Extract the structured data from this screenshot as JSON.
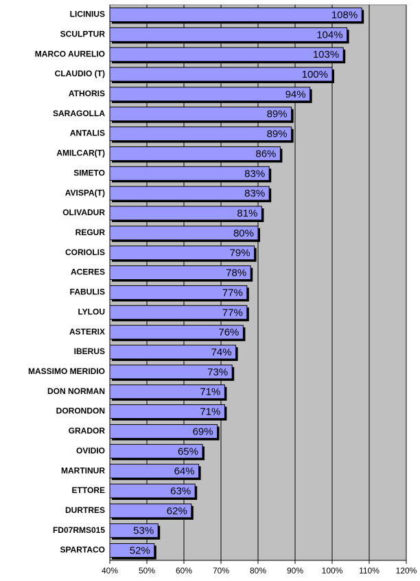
{
  "chart_data": {
    "type": "bar",
    "orientation": "horizontal",
    "categories": [
      "LICINIUS",
      "SCULPTUR",
      "MARCO AURELIO",
      "CLAUDIO (T)",
      "ATHORIS",
      "SARAGOLLA",
      "ANTALIS",
      "AMILCAR(T)",
      "SIMETO",
      "AVISPA(T)",
      "OLIVADUR",
      "REGUR",
      "CORIOLIS",
      "ACERES",
      "FABULIS",
      "LYLOU",
      "ASTERIX",
      "IBERUS",
      "MASSIMO MERIDIO",
      "DON NORMAN",
      "DORONDON",
      "GRADOR",
      "OVIDIO",
      "MARTINUR",
      "ETTORE",
      "DURTRES",
      "FD07RMS015",
      "SPARTACO"
    ],
    "values": [
      108,
      104,
      103,
      100,
      94,
      89,
      89,
      86,
      83,
      83,
      81,
      80,
      79,
      78,
      77,
      77,
      76,
      74,
      73,
      71,
      71,
      69,
      65,
      64,
      63,
      62,
      53,
      52
    ],
    "value_labels": [
      "108%",
      "104%",
      "103%",
      "100%",
      "94%",
      "89%",
      "89%",
      "86%",
      "83%",
      "83%",
      "81%",
      "80%",
      "79%",
      "78%",
      "77%",
      "77%",
      "76%",
      "74%",
      "73%",
      "71%",
      "71%",
      "69%",
      "65%",
      "64%",
      "63%",
      "62%",
      "53%",
      "52%"
    ],
    "color": "#9999ff",
    "plot_background": "#c0c0c0",
    "xlim": [
      40,
      120
    ],
    "xticks": [
      {
        "value": 40,
        "label": "40%"
      },
      {
        "value": 50,
        "label": "50%"
      },
      {
        "value": 60,
        "label": "60%"
      },
      {
        "value": 70,
        "label": "70%"
      },
      {
        "value": 80,
        "label": "80%"
      },
      {
        "value": 90,
        "label": "90%"
      },
      {
        "value": 100,
        "label": "100%"
      },
      {
        "value": 110,
        "label": "110%"
      },
      {
        "value": 120,
        "label": "120%"
      }
    ],
    "grid": true
  }
}
